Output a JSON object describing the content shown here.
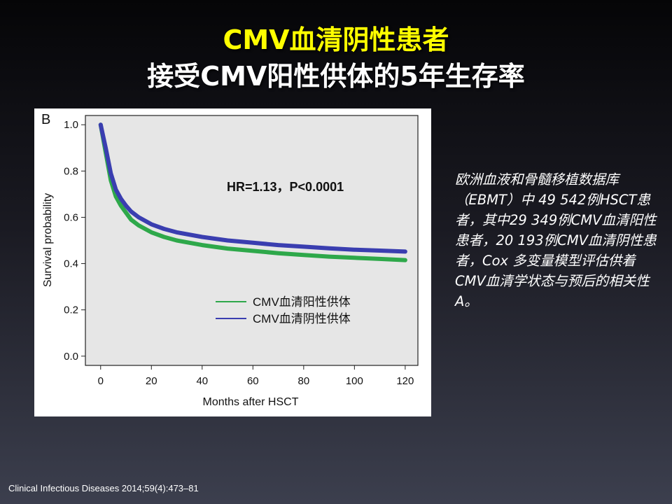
{
  "slide": {
    "title_line1": "CMV血清阴性患者",
    "title_line2": "接受CMV阳性供体的5年生存率",
    "side_text": "欧洲血液和骨髓移植数据库（EBMT）中 49 542例HSCT患者，其中29 349例CMV血清阳性患者，20 193例CMV血清阴性患者，Cox 多变量模型评估供着CMV血清学状态与预后的相关性A。",
    "citation": "Clinical Infectious Diseases 2014;59(4):473–81",
    "colors": {
      "title_yellow": "#ffff00",
      "plot_bg": "#e6e6e6"
    }
  },
  "chart_data": {
    "type": "line",
    "panel_label": "B",
    "annotation": "HR=1.13，P<0.0001",
    "xlabel": "Months after HSCT",
    "ylabel": "Survival probability",
    "xlim": [
      -6,
      125
    ],
    "ylim": [
      -0.04,
      1.04
    ],
    "x_ticks": [
      0,
      20,
      40,
      60,
      80,
      100,
      120
    ],
    "y_ticks": [
      0.0,
      0.2,
      0.4,
      0.6,
      0.8,
      1.0
    ],
    "y_tick_labels": [
      "0.0",
      "0.2",
      "0.4",
      "0.6",
      "0.8",
      "1.0"
    ],
    "legend_position": "center-right",
    "series": [
      {
        "name": "CMV血清阳性供体",
        "color": "#2ea84a",
        "x": [
          0,
          2,
          4,
          6,
          8,
          10,
          12,
          15,
          20,
          25,
          30,
          40,
          50,
          60,
          70,
          80,
          90,
          100,
          110,
          120
        ],
        "y": [
          1.0,
          0.88,
          0.76,
          0.69,
          0.65,
          0.62,
          0.59,
          0.565,
          0.535,
          0.515,
          0.5,
          0.48,
          0.465,
          0.455,
          0.445,
          0.437,
          0.43,
          0.425,
          0.42,
          0.415
        ]
      },
      {
        "name": "CMV血清阴性供体",
        "color": "#3a3eb0",
        "x": [
          0,
          2,
          4,
          6,
          8,
          10,
          12,
          15,
          20,
          25,
          30,
          40,
          50,
          60,
          70,
          80,
          90,
          100,
          110,
          120
        ],
        "y": [
          1.0,
          0.9,
          0.79,
          0.72,
          0.68,
          0.65,
          0.625,
          0.6,
          0.57,
          0.55,
          0.535,
          0.515,
          0.5,
          0.49,
          0.48,
          0.473,
          0.466,
          0.46,
          0.456,
          0.452
        ]
      }
    ]
  }
}
